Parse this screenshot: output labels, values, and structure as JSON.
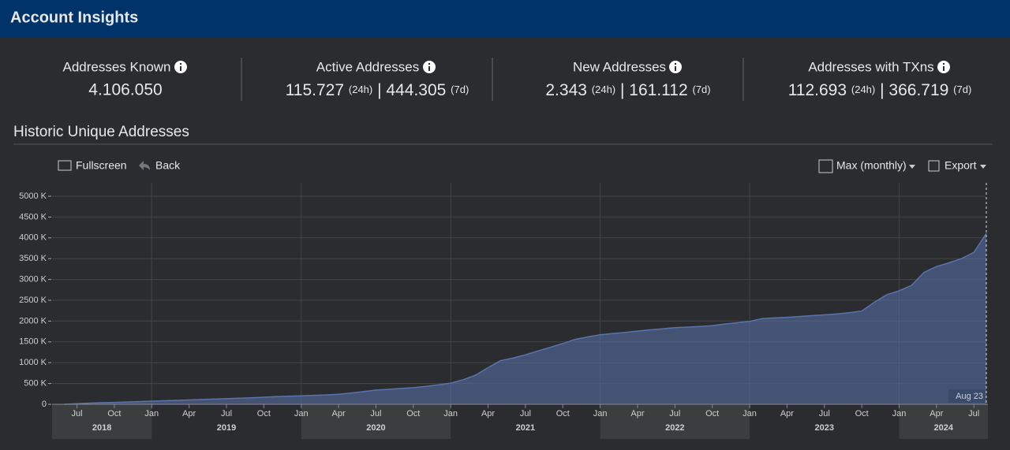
{
  "header": {
    "title": "Account Insights"
  },
  "stats": [
    {
      "title": "Addresses Known",
      "value": "4.106.050"
    },
    {
      "title": "Active Addresses",
      "value_24h": "115.727",
      "label_24h": "(24h)",
      "separator": "|",
      "value_7d": "444.305",
      "label_7d": "(7d)"
    },
    {
      "title": "New Addresses",
      "value_24h": "2.343",
      "label_24h": "(24h)",
      "separator": "|",
      "value_7d": "161.112",
      "label_7d": "(7d)"
    },
    {
      "title": "Addresses with TXns",
      "value_24h": "112.693",
      "label_24h": "(24h)",
      "separator": "|",
      "value_7d": "366.719",
      "label_7d": "(7d)"
    }
  ],
  "section": {
    "title": "Historic Unique Addresses"
  },
  "toolbar": {
    "fullscreen": "Fullscreen",
    "back": "Back",
    "range": "Max (monthly)",
    "export": "Export"
  },
  "chart_data": {
    "type": "area",
    "color": "#5a73ad",
    "x": [
      "2018-06",
      "2018-07",
      "2018-08",
      "2018-09",
      "2018-10",
      "2018-11",
      "2018-12",
      "2019-01",
      "2019-02",
      "2019-03",
      "2019-04",
      "2019-05",
      "2019-06",
      "2019-07",
      "2019-08",
      "2019-09",
      "2019-10",
      "2019-11",
      "2019-12",
      "2020-01",
      "2020-02",
      "2020-03",
      "2020-04",
      "2020-05",
      "2020-06",
      "2020-07",
      "2020-08",
      "2020-09",
      "2020-10",
      "2020-11",
      "2020-12",
      "2021-01",
      "2021-02",
      "2021-03",
      "2021-04",
      "2021-05",
      "2021-06",
      "2021-07",
      "2021-08",
      "2021-09",
      "2021-10",
      "2021-11",
      "2021-12",
      "2022-01",
      "2022-02",
      "2022-03",
      "2022-04",
      "2022-05",
      "2022-06",
      "2022-07",
      "2022-08",
      "2022-09",
      "2022-10",
      "2022-11",
      "2022-12",
      "2023-01",
      "2023-02",
      "2023-03",
      "2023-04",
      "2023-05",
      "2023-06",
      "2023-07",
      "2023-08",
      "2023-09",
      "2023-10",
      "2023-11",
      "2023-12",
      "2024-01",
      "2024-02",
      "2024-03",
      "2024-04",
      "2024-05",
      "2024-06",
      "2024-07",
      "2024-08"
    ],
    "values": [
      0,
      15,
      28,
      38,
      46,
      55,
      65,
      75,
      85,
      95,
      105,
      115,
      125,
      135,
      145,
      155,
      170,
      185,
      195,
      205,
      215,
      225,
      240,
      270,
      305,
      340,
      360,
      380,
      400,
      430,
      465,
      510,
      590,
      700,
      880,
      1050,
      1110,
      1190,
      1280,
      1370,
      1460,
      1560,
      1620,
      1670,
      1700,
      1730,
      1760,
      1790,
      1815,
      1840,
      1855,
      1870,
      1890,
      1930,
      1960,
      1990,
      2060,
      2075,
      2090,
      2110,
      2130,
      2150,
      2170,
      2200,
      2240,
      2450,
      2630,
      2730,
      2860,
      3170,
      3310,
      3400,
      3500,
      3650,
      4106
    ],
    "xlim": [
      "2018-05",
      "2024-08"
    ],
    "xticks": [
      {
        "value": "2018-07",
        "label": "Jul"
      },
      {
        "value": "2018-10",
        "label": "Oct"
      },
      {
        "value": "2019-01",
        "label": "Jan"
      },
      {
        "value": "2019-04",
        "label": "Apr"
      },
      {
        "value": "2019-07",
        "label": "Jul"
      },
      {
        "value": "2019-10",
        "label": "Oct"
      },
      {
        "value": "2020-01",
        "label": "Jan"
      },
      {
        "value": "2020-04",
        "label": "Apr"
      },
      {
        "value": "2020-07",
        "label": "Jul"
      },
      {
        "value": "2020-10",
        "label": "Oct"
      },
      {
        "value": "2021-01",
        "label": "Jan"
      },
      {
        "value": "2021-04",
        "label": "Apr"
      },
      {
        "value": "2021-07",
        "label": "Jul"
      },
      {
        "value": "2021-10",
        "label": "Oct"
      },
      {
        "value": "2022-01",
        "label": "Jan"
      },
      {
        "value": "2022-04",
        "label": "Apr"
      },
      {
        "value": "2022-07",
        "label": "Jul"
      },
      {
        "value": "2022-10",
        "label": "Oct"
      },
      {
        "value": "2023-01",
        "label": "Jan"
      },
      {
        "value": "2023-04",
        "label": "Apr"
      },
      {
        "value": "2023-07",
        "label": "Jul"
      },
      {
        "value": "2023-10",
        "label": "Oct"
      },
      {
        "value": "2024-01",
        "label": "Jan"
      },
      {
        "value": "2024-04",
        "label": "Apr"
      },
      {
        "value": "2024-07",
        "label": "Jul"
      }
    ],
    "year_ticks": [
      2018,
      2019,
      2020,
      2021,
      2022,
      2023,
      2024
    ],
    "ylim": [
      0,
      5000
    ],
    "yticks": [
      {
        "value": 0,
        "label": "0"
      },
      {
        "value": 500,
        "label": "500 K"
      },
      {
        "value": 1000,
        "label": "1000 K"
      },
      {
        "value": 1500,
        "label": "1500 K"
      },
      {
        "value": 2000,
        "label": "2000 K"
      },
      {
        "value": 2500,
        "label": "2500 K"
      },
      {
        "value": 3000,
        "label": "3000 K"
      },
      {
        "value": 3500,
        "label": "3500 K"
      },
      {
        "value": 4000,
        "label": "4000 K"
      },
      {
        "value": 4500,
        "label": "4500 K"
      },
      {
        "value": 5000,
        "label": "5000 K"
      }
    ],
    "grid": true,
    "annotation": "Aug 23"
  }
}
